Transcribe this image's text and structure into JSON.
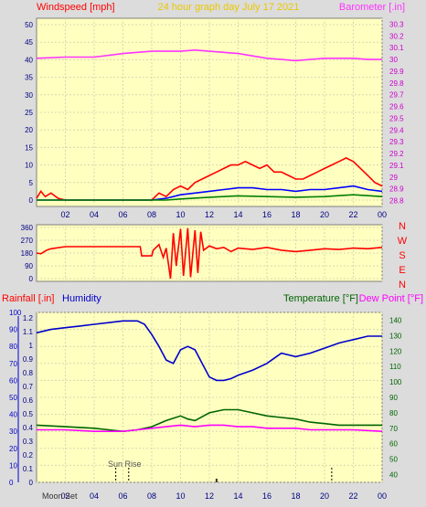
{
  "chart_data": [
    {
      "type": "line",
      "title": "24 hour graph day   July 17 2021",
      "left_label": "Windspeed [mph]",
      "right_label": "Barometer [.in]",
      "left_ticks": [
        "0",
        "5",
        "10",
        "15",
        "20",
        "25",
        "30",
        "35",
        "40",
        "45",
        "50"
      ],
      "right_ticks": [
        "28.8",
        "28.9",
        "29",
        "29.1",
        "29.2",
        "29.3",
        "29.4",
        "29.5",
        "29.6",
        "29.7",
        "29.8",
        "29.9",
        "30",
        "30.1",
        "30.2",
        "30.3"
      ],
      "x_ticks": [
        "02",
        "04",
        "06",
        "08",
        "10",
        "12",
        "14",
        "16",
        "18",
        "20",
        "22",
        "00"
      ],
      "ylim_left": [
        0,
        50
      ],
      "ylim_right": [
        28.75,
        30.35
      ],
      "xlim": [
        0,
        24
      ],
      "series": [
        {
          "key": "barometer",
          "color": "#ff33ff",
          "axis": "right",
          "points": [
            [
              0,
              30.01
            ],
            [
              2,
              30.02
            ],
            [
              4,
              30.02
            ],
            [
              6,
              30.05
            ],
            [
              7,
              30.06
            ],
            [
              8,
              30.07
            ],
            [
              10,
              30.07
            ],
            [
              11,
              30.08
            ],
            [
              12,
              30.07
            ],
            [
              13,
              30.06
            ],
            [
              14,
              30.05
            ],
            [
              15,
              30.03
            ],
            [
              16,
              30.01
            ],
            [
              17,
              30.0
            ],
            [
              18,
              29.99
            ],
            [
              19,
              30.0
            ],
            [
              20,
              30.01
            ],
            [
              21,
              30.01
            ],
            [
              22,
              30.01
            ],
            [
              23,
              30.0
            ],
            [
              24,
              30.0
            ]
          ]
        },
        {
          "key": "gust",
          "color": "#ff0000",
          "axis": "left",
          "points": [
            [
              0,
              0.5
            ],
            [
              0.3,
              2.5
            ],
            [
              0.6,
              1
            ],
            [
              1,
              2
            ],
            [
              1.5,
              0.5
            ],
            [
              2,
              0
            ],
            [
              8,
              0
            ],
            [
              8.5,
              2
            ],
            [
              9,
              1
            ],
            [
              9.5,
              3
            ],
            [
              10,
              4
            ],
            [
              10.5,
              3
            ],
            [
              11,
              5
            ],
            [
              11.5,
              6
            ],
            [
              12,
              7
            ],
            [
              12.5,
              8
            ],
            [
              13,
              9
            ],
            [
              13.5,
              10
            ],
            [
              14,
              10
            ],
            [
              14.5,
              11
            ],
            [
              15,
              10
            ],
            [
              15.5,
              9
            ],
            [
              16,
              10
            ],
            [
              16.5,
              8
            ],
            [
              17,
              8
            ],
            [
              17.5,
              7
            ],
            [
              18,
              6
            ],
            [
              18.5,
              6
            ],
            [
              19,
              7
            ],
            [
              19.5,
              8
            ],
            [
              20,
              9
            ],
            [
              20.5,
              10
            ],
            [
              21,
              11
            ],
            [
              21.5,
              12
            ],
            [
              22,
              11
            ],
            [
              22.5,
              9
            ],
            [
              23,
              7
            ],
            [
              23.5,
              5
            ],
            [
              24,
              4
            ]
          ]
        },
        {
          "key": "average",
          "color": "#0000ff",
          "axis": "left",
          "points": [
            [
              0,
              0
            ],
            [
              8,
              0
            ],
            [
              9,
              0.5
            ],
            [
              10,
              1.5
            ],
            [
              11,
              2
            ],
            [
              12,
              2.5
            ],
            [
              13,
              3
            ],
            [
              14,
              3.5
            ],
            [
              15,
              3.5
            ],
            [
              16,
              3
            ],
            [
              17,
              3
            ],
            [
              18,
              2.5
            ],
            [
              19,
              3
            ],
            [
              20,
              3
            ],
            [
              21,
              3.5
            ],
            [
              22,
              4
            ],
            [
              23,
              3
            ],
            [
              24,
              2.5
            ]
          ]
        },
        {
          "key": "low",
          "color": "#008000",
          "axis": "left",
          "points": [
            [
              0,
              0
            ],
            [
              9,
              0
            ],
            [
              10,
              0.3
            ],
            [
              12,
              0.8
            ],
            [
              14,
              1.2
            ],
            [
              16,
              1
            ],
            [
              18,
              0.8
            ],
            [
              20,
              1
            ],
            [
              22,
              1.5
            ],
            [
              24,
              1
            ]
          ]
        }
      ]
    },
    {
      "type": "line",
      "left_ticks": [
        "0",
        "90",
        "180",
        "270",
        "360"
      ],
      "right_labels": [
        "N",
        "W",
        "S",
        "E",
        "N"
      ],
      "ylim": [
        0,
        360
      ],
      "xlim": [
        0,
        24
      ],
      "series": [
        {
          "key": "wind_direction",
          "color": "#ff0000",
          "points": [
            [
              0,
              180
            ],
            [
              0.3,
              175
            ],
            [
              0.7,
              200
            ],
            [
              1,
              210
            ],
            [
              2,
              225
            ],
            [
              3,
              225
            ],
            [
              6,
              225
            ],
            [
              7,
              225
            ],
            [
              7.2,
              225
            ],
            [
              7.3,
              160
            ],
            [
              8,
              160
            ],
            [
              8.1,
              200
            ],
            [
              8.5,
              240
            ],
            [
              8.8,
              150
            ],
            [
              9,
              215
            ],
            [
              9.3,
              0
            ],
            [
              9.5,
              320
            ],
            [
              9.7,
              90
            ],
            [
              10,
              350
            ],
            [
              10.2,
              20
            ],
            [
              10.5,
              355
            ],
            [
              10.7,
              10
            ],
            [
              11,
              340
            ],
            [
              11.2,
              40
            ],
            [
              11.4,
              330
            ],
            [
              11.6,
              200
            ],
            [
              12,
              230
            ],
            [
              12.5,
              210
            ],
            [
              13,
              220
            ],
            [
              13.5,
              190
            ],
            [
              14,
              215
            ],
            [
              15,
              205
            ],
            [
              16,
              220
            ],
            [
              17,
              200
            ],
            [
              18,
              190
            ],
            [
              19,
              200
            ],
            [
              20,
              210
            ],
            [
              21,
              205
            ],
            [
              22,
              215
            ],
            [
              23,
              210
            ],
            [
              24,
              220
            ]
          ]
        }
      ]
    },
    {
      "type": "line",
      "left_label_rain": "Rainfall [.in]",
      "left_label_humidity": "Humidity",
      "right_label_temp": "Temperature [°F]",
      "right_label_dew": "Dew Point [°F]",
      "rain_ticks": [
        "0",
        "0.1",
        "0.2",
        "0.3",
        "0.4",
        "0.5",
        "0.6",
        "0.7",
        "0.8",
        "0.9",
        "1",
        "1.1",
        "1.2"
      ],
      "humidity_ticks": [
        "0",
        "10",
        "20",
        "30",
        "40",
        "50",
        "60",
        "70",
        "80",
        "90",
        "100"
      ],
      "temp_ticks": [
        "40",
        "50",
        "60",
        "70",
        "80",
        "90",
        "100",
        "110",
        "120",
        "130",
        "140"
      ],
      "x_ticks": [
        "02",
        "04",
        "06",
        "08",
        "10",
        "12",
        "14",
        "16",
        "18",
        "20",
        "22",
        "00"
      ],
      "moon_label": "Moon Set",
      "sunrise_label": "Sun Rise",
      "ylim_humidity": [
        0,
        100
      ],
      "ylim_temp": [
        35,
        145
      ],
      "xlim": [
        0,
        24
      ],
      "series": [
        {
          "key": "humidity",
          "color": "#0000cc",
          "axis": "humidity",
          "points": [
            [
              0,
              88
            ],
            [
              1,
              90
            ],
            [
              2,
              91
            ],
            [
              3,
              92
            ],
            [
              4,
              93
            ],
            [
              5,
              94
            ],
            [
              6,
              95
            ],
            [
              7,
              95
            ],
            [
              7.5,
              93
            ],
            [
              8,
              87
            ],
            [
              8.5,
              80
            ],
            [
              9,
              72
            ],
            [
              9.5,
              70
            ],
            [
              10,
              78
            ],
            [
              10.5,
              80
            ],
            [
              11,
              78
            ],
            [
              11.5,
              70
            ],
            [
              12,
              62
            ],
            [
              12.5,
              60
            ],
            [
              13,
              60
            ],
            [
              13.5,
              61
            ],
            [
              14,
              63
            ],
            [
              15,
              66
            ],
            [
              16,
              70
            ],
            [
              16.5,
              73
            ],
            [
              17,
              76
            ],
            [
              18,
              74
            ],
            [
              19,
              76
            ],
            [
              20,
              79
            ],
            [
              21,
              82
            ],
            [
              22,
              84
            ],
            [
              23,
              86
            ],
            [
              24,
              86
            ]
          ]
        },
        {
          "key": "temperature",
          "color": "#006400",
          "axis": "temp",
          "points": [
            [
              0,
              72
            ],
            [
              2,
              71
            ],
            [
              4,
              70
            ],
            [
              5,
              69
            ],
            [
              6,
              68
            ],
            [
              7,
              69
            ],
            [
              8,
              71
            ],
            [
              9,
              75
            ],
            [
              10,
              78
            ],
            [
              10.5,
              76
            ],
            [
              11,
              75
            ],
            [
              12,
              80
            ],
            [
              13,
              82
            ],
            [
              14,
              82
            ],
            [
              15,
              80
            ],
            [
              16,
              78
            ],
            [
              17,
              77
            ],
            [
              18,
              76
            ],
            [
              19,
              74
            ],
            [
              20,
              73
            ],
            [
              21,
              72
            ],
            [
              22,
              72
            ],
            [
              24,
              72
            ]
          ]
        },
        {
          "key": "dew_point",
          "color": "#ff00ff",
          "axis": "temp",
          "points": [
            [
              0,
              69
            ],
            [
              2,
              69
            ],
            [
              4,
              68
            ],
            [
              6,
              68
            ],
            [
              7,
              69
            ],
            [
              8,
              70
            ],
            [
              9,
              71
            ],
            [
              10,
              72
            ],
            [
              11,
              71
            ],
            [
              12,
              72
            ],
            [
              13,
              72
            ],
            [
              14,
              71
            ],
            [
              15,
              71
            ],
            [
              16,
              70
            ],
            [
              17,
              70
            ],
            [
              18,
              70
            ],
            [
              19,
              69
            ],
            [
              20,
              69
            ],
            [
              21,
              69
            ],
            [
              22,
              69
            ],
            [
              24,
              68
            ]
          ]
        }
      ]
    }
  ]
}
